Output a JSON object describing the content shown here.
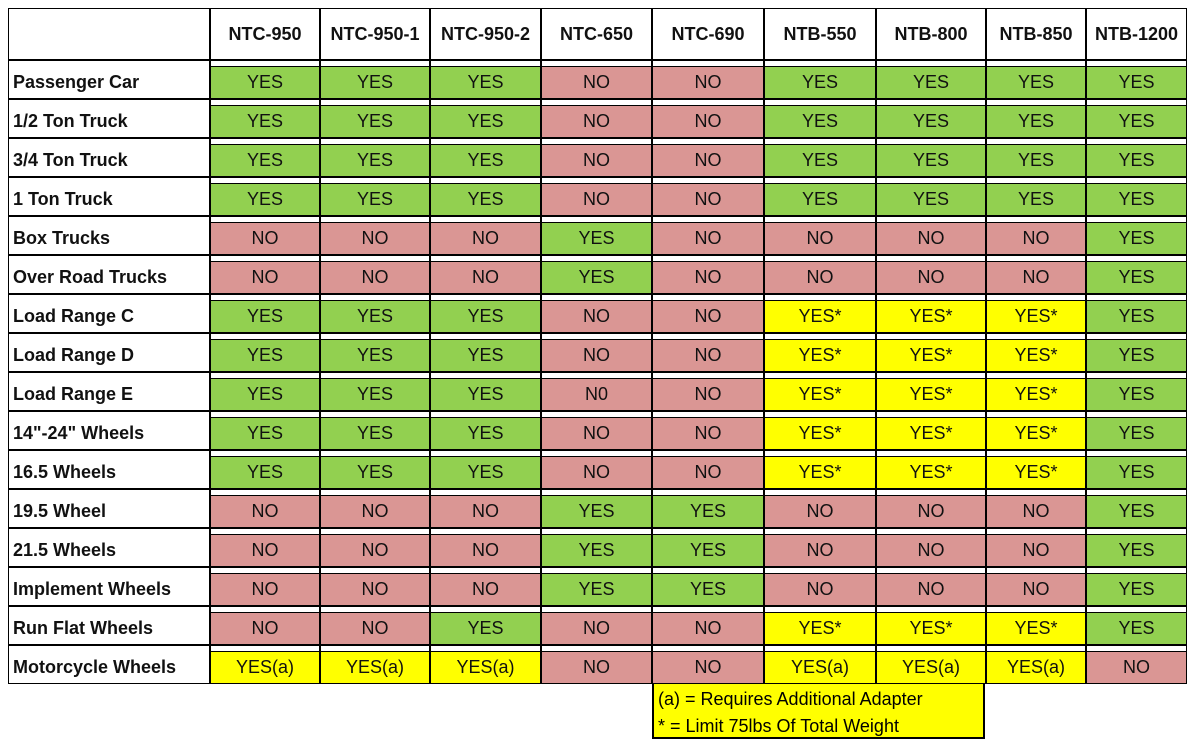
{
  "table": {
    "columns": [
      "NTC-950",
      "NTC-950-1",
      "NTC-950-2",
      "NTC-650",
      "NTC-690",
      "NTB-550",
      "NTB-800",
      "NTB-850",
      "NTB-1200"
    ],
    "rows": [
      {
        "label": "Passenger Car",
        "values": [
          "YES",
          "YES",
          "YES",
          "NO",
          "NO",
          "YES",
          "YES",
          "YES",
          "YES"
        ],
        "colors": [
          "#92d050",
          "#92d050",
          "#92d050",
          "#da9694",
          "#da9694",
          "#92d050",
          "#92d050",
          "#92d050",
          "#92d050"
        ]
      },
      {
        "label": "1/2 Ton Truck",
        "values": [
          "YES",
          "YES",
          "YES",
          "NO",
          "NO",
          "YES",
          "YES",
          "YES",
          "YES"
        ],
        "colors": [
          "#92d050",
          "#92d050",
          "#92d050",
          "#da9694",
          "#da9694",
          "#92d050",
          "#92d050",
          "#92d050",
          "#92d050"
        ]
      },
      {
        "label": "3/4 Ton Truck",
        "values": [
          "YES",
          "YES",
          "YES",
          "NO",
          "NO",
          "YES",
          "YES",
          "YES",
          "YES"
        ],
        "colors": [
          "#92d050",
          "#92d050",
          "#92d050",
          "#da9694",
          "#da9694",
          "#92d050",
          "#92d050",
          "#92d050",
          "#92d050"
        ]
      },
      {
        "label": "1 Ton Truck",
        "values": [
          "YES",
          "YES",
          "YES",
          "NO",
          "NO",
          "YES",
          "YES",
          "YES",
          "YES"
        ],
        "colors": [
          "#92d050",
          "#92d050",
          "#92d050",
          "#da9694",
          "#da9694",
          "#92d050",
          "#92d050",
          "#92d050",
          "#92d050"
        ]
      },
      {
        "label": "Box Trucks",
        "values": [
          "NO",
          "NO",
          "NO",
          "YES",
          "NO",
          "NO",
          "NO",
          "NO",
          "YES"
        ],
        "colors": [
          "#da9694",
          "#da9694",
          "#da9694",
          "#92d050",
          "#da9694",
          "#da9694",
          "#da9694",
          "#da9694",
          "#92d050"
        ]
      },
      {
        "label": "Over Road Trucks",
        "values": [
          "NO",
          "NO",
          "NO",
          "YES",
          "NO",
          "NO",
          "NO",
          "NO",
          "YES"
        ],
        "colors": [
          "#da9694",
          "#da9694",
          "#da9694",
          "#92d050",
          "#da9694",
          "#da9694",
          "#da9694",
          "#da9694",
          "#92d050"
        ]
      },
      {
        "label": "Load Range C",
        "values": [
          "YES",
          "YES",
          "YES",
          "NO",
          "NO",
          "YES*",
          "YES*",
          "YES*",
          "YES"
        ],
        "colors": [
          "#92d050",
          "#92d050",
          "#92d050",
          "#da9694",
          "#da9694",
          "#ffff00",
          "#ffff00",
          "#ffff00",
          "#92d050"
        ]
      },
      {
        "label": "Load Range D",
        "values": [
          "YES",
          "YES",
          "YES",
          "NO",
          "NO",
          "YES*",
          "YES*",
          "YES*",
          "YES"
        ],
        "colors": [
          "#92d050",
          "#92d050",
          "#92d050",
          "#da9694",
          "#da9694",
          "#ffff00",
          "#ffff00",
          "#ffff00",
          "#92d050"
        ]
      },
      {
        "label": "Load Range E",
        "values": [
          "YES",
          "YES",
          "YES",
          "N0",
          "NO",
          "YES*",
          "YES*",
          "YES*",
          "YES"
        ],
        "colors": [
          "#92d050",
          "#92d050",
          "#92d050",
          "#da9694",
          "#da9694",
          "#ffff00",
          "#ffff00",
          "#ffff00",
          "#92d050"
        ]
      },
      {
        "label": "14\"-24\" Wheels",
        "values": [
          "YES",
          "YES",
          "YES",
          "NO",
          "NO",
          "YES*",
          "YES*",
          "YES*",
          "YES"
        ],
        "colors": [
          "#92d050",
          "#92d050",
          "#92d050",
          "#da9694",
          "#da9694",
          "#ffff00",
          "#ffff00",
          "#ffff00",
          "#92d050"
        ]
      },
      {
        "label": "16.5 Wheels",
        "values": [
          "YES",
          "YES",
          "YES",
          "NO",
          "NO",
          "YES*",
          "YES*",
          "YES*",
          "YES"
        ],
        "colors": [
          "#92d050",
          "#92d050",
          "#92d050",
          "#da9694",
          "#da9694",
          "#ffff00",
          "#ffff00",
          "#ffff00",
          "#92d050"
        ]
      },
      {
        "label": "19.5 Wheel",
        "values": [
          "NO",
          "NO",
          "NO",
          "YES",
          "YES",
          "NO",
          "NO",
          "NO",
          "YES"
        ],
        "colors": [
          "#da9694",
          "#da9694",
          "#da9694",
          "#92d050",
          "#92d050",
          "#da9694",
          "#da9694",
          "#da9694",
          "#92d050"
        ]
      },
      {
        "label": "21.5 Wheels",
        "values": [
          "NO",
          "NO",
          "NO",
          "YES",
          "YES",
          "NO",
          "NO",
          "NO",
          "YES"
        ],
        "colors": [
          "#da9694",
          "#da9694",
          "#da9694",
          "#92d050",
          "#92d050",
          "#da9694",
          "#da9694",
          "#da9694",
          "#92d050"
        ]
      },
      {
        "label": "Implement Wheels",
        "values": [
          "NO",
          "NO",
          "NO",
          "YES",
          "YES",
          "NO",
          "NO",
          "NO",
          "YES"
        ],
        "colors": [
          "#da9694",
          "#da9694",
          "#da9694",
          "#92d050",
          "#92d050",
          "#da9694",
          "#da9694",
          "#da9694",
          "#92d050"
        ]
      },
      {
        "label": "Run Flat Wheels",
        "values": [
          "NO",
          "NO",
          "YES",
          "NO",
          "NO",
          "YES*",
          "YES*",
          "YES*",
          "YES"
        ],
        "colors": [
          "#da9694",
          "#da9694",
          "#92d050",
          "#da9694",
          "#da9694",
          "#ffff00",
          "#ffff00",
          "#ffff00",
          "#92d050"
        ]
      },
      {
        "label": "Motorcycle Wheels",
        "values": [
          "YES(a)",
          "YES(a)",
          "YES(a)",
          "NO",
          "NO",
          "YES(a)",
          "YES(a)",
          "YES(a)",
          "NO"
        ],
        "colors": [
          "#ffff00",
          "#ffff00",
          "#ffff00",
          "#da9694",
          "#da9694",
          "#ffff00",
          "#ffff00",
          "#ffff00",
          "#da9694"
        ]
      }
    ]
  },
  "legend": {
    "lines": [
      "(a) = Requires Additional Adapter",
      "* = Limit 75lbs Of Total Weight"
    ],
    "color": "#ffff00"
  }
}
